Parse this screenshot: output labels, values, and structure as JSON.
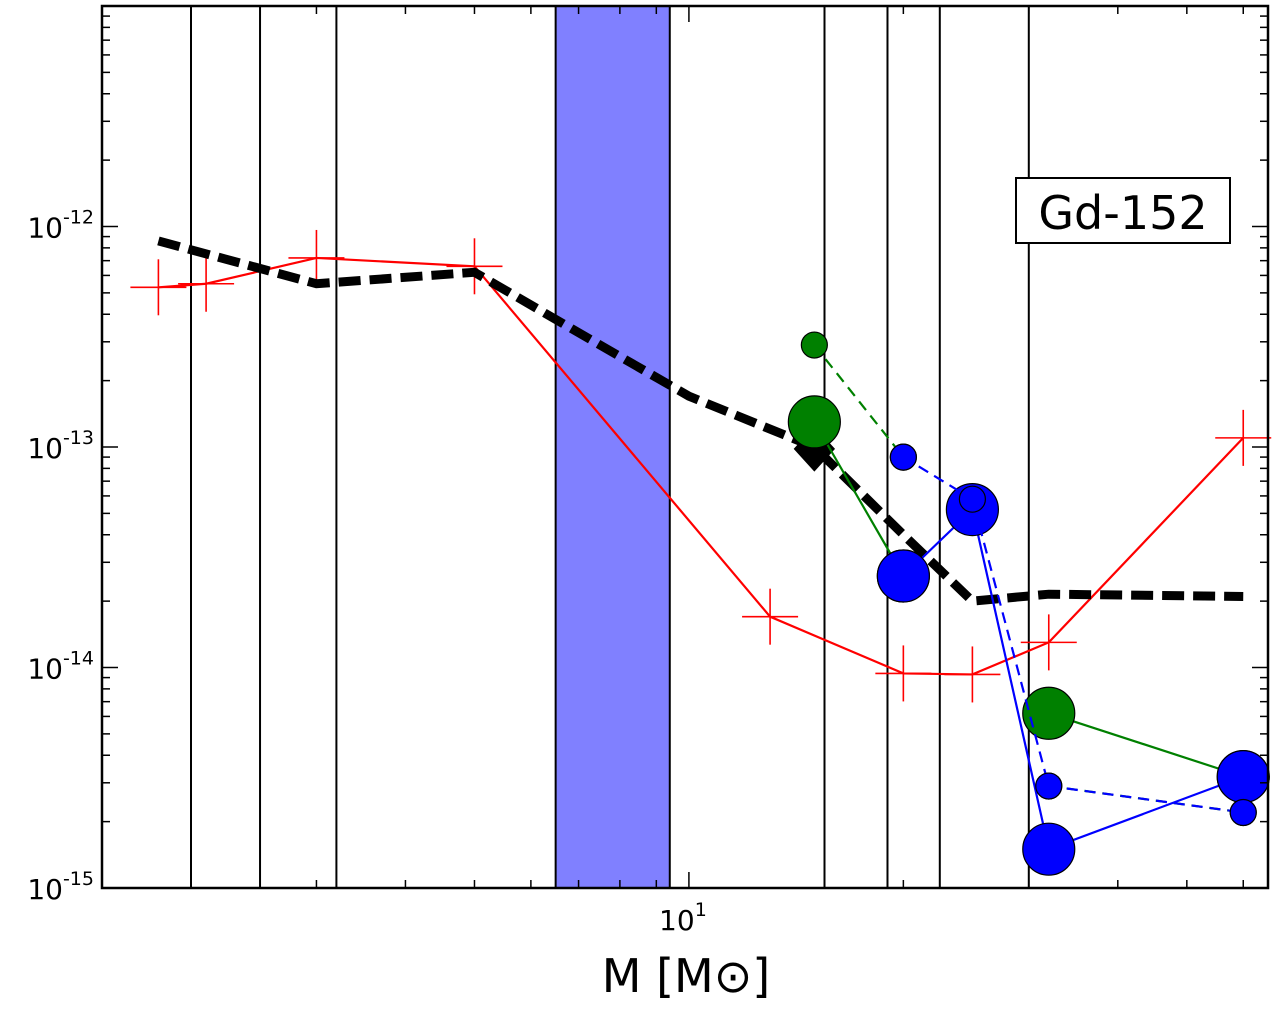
{
  "chart_data": {
    "type": "line",
    "title": "",
    "annotation": "Gd-152",
    "xlabel": "M [M⊙]",
    "ylabel": "",
    "x_scale": "log",
    "y_scale": "log",
    "xlim": [
      1.5,
      65
    ],
    "ylim": [
      1e-15,
      1e-11
    ],
    "x_tick_labels": [
      {
        "value": 10,
        "base": "10",
        "exp": "1"
      }
    ],
    "y_tick_labels": [
      {
        "value": 1e-15,
        "base": "10",
        "exp": "-15"
      },
      {
        "value": 1e-14,
        "base": "10",
        "exp": "-14"
      },
      {
        "value": 1e-13,
        "base": "10",
        "exp": "-13"
      },
      {
        "value": 1e-12,
        "base": "10",
        "exp": "-12"
      }
    ],
    "grid": false,
    "vertical_lines": [
      2.0,
      2.5,
      3.2,
      15.5,
      19.0,
      22.5,
      30.0
    ],
    "shaded_band": {
      "x_range": [
        6.5,
        9.4
      ],
      "color": "#8080ff"
    },
    "series": [
      {
        "kind": "line",
        "color": "#ff0000",
        "marker": "plus",
        "dash": "solid",
        "x": [
          1.8,
          2.1,
          3.0,
          5.0,
          13.0,
          20.0,
          25.0,
          32.0,
          60.0
        ],
        "y": [
          5.3e-13,
          5.5e-13,
          7.2e-13,
          6.6e-13,
          1.7e-14,
          9.4e-15,
          9.3e-15,
          1.3e-14,
          1.1e-13
        ]
      },
      {
        "kind": "line",
        "color": "#000000",
        "marker": "none",
        "dash": "thick-dashed",
        "x": [
          1.8,
          3.0,
          5.0,
          7.0,
          10.0,
          15.0,
          20.0,
          25.0,
          32.0,
          60.0
        ],
        "y": [
          8.6e-13,
          5.5e-13,
          6.2e-13,
          3.3e-13,
          1.7e-13,
          1e-13,
          4e-14,
          2e-14,
          2.15e-14,
          2.1e-14
        ]
      },
      {
        "kind": "points",
        "color": "#000000",
        "marker": "diamond",
        "dash": "none",
        "x": [
          15.0,
          15.0,
          15.0
        ],
        "y": [
          1.3e-13,
          1.1e-13,
          9.8e-14
        ]
      },
      {
        "kind": "line",
        "color": "#008000",
        "marker": "circle-large",
        "dash": "solid",
        "x": [
          15.0,
          20.0
        ],
        "y": [
          1.3e-13,
          2.6e-14
        ]
      },
      {
        "kind": "line",
        "color": "#008000",
        "marker": "circle-large",
        "dash": "solid",
        "x": [
          32.0,
          60.0
        ],
        "y": [
          6.2e-15,
          3.2e-15
        ]
      },
      {
        "kind": "line",
        "color": "#008000",
        "marker": "circle-small",
        "dash": "dashed",
        "x": [
          15.0,
          20.0
        ],
        "y": [
          2.9e-13,
          9e-14
        ]
      },
      {
        "kind": "line",
        "color": "#008000",
        "marker": "circle-small",
        "dash": "dashed",
        "x": [
          32.0,
          60.0
        ],
        "y": [
          2.9e-15,
          2.2e-15
        ]
      },
      {
        "kind": "line",
        "color": "#0000ff",
        "marker": "circle-large",
        "dash": "solid",
        "x": [
          20.0,
          25.0,
          32.0,
          60.0
        ],
        "y": [
          2.6e-14,
          5.2e-14,
          1.5e-15,
          3.2e-15
        ]
      },
      {
        "kind": "line",
        "color": "#0000ff",
        "marker": "circle-small",
        "dash": "dashed",
        "x": [
          20.0,
          25.0,
          32.0,
          60.0
        ],
        "y": [
          9e-14,
          5.8e-14,
          2.9e-15,
          2.2e-15
        ]
      }
    ]
  }
}
